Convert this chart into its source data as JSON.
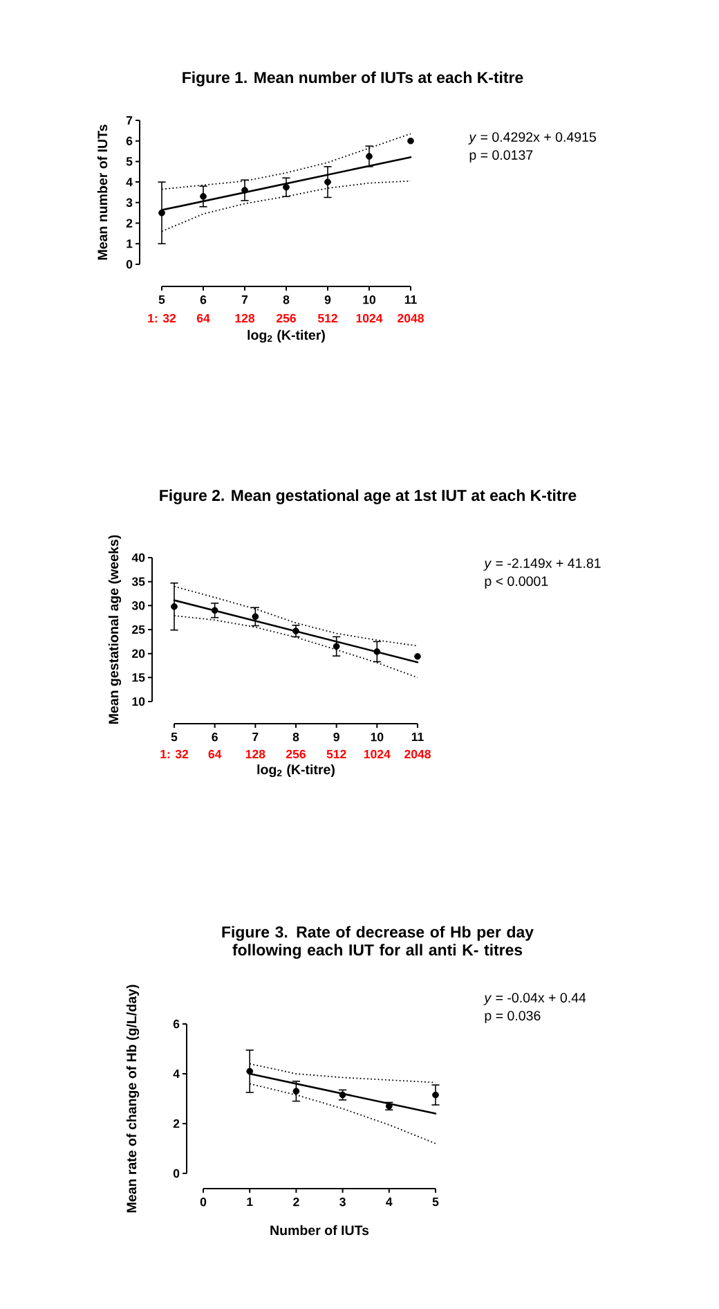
{
  "chart_data": [
    {
      "type": "scatter",
      "title": "Figure 1. Mean number of IUTs at each K-titre",
      "xlabel": "log$_{2}$ (K-titer)",
      "ylabel": "Mean number of IUTs",
      "xlim": [
        5,
        11
      ],
      "xticks": [
        5,
        6,
        7,
        8,
        9,
        10,
        11
      ],
      "x2lim": [
        32,
        2048
      ],
      "x2ticks": [
        {
          "value": 32,
          "label": "1: 32"
        },
        64,
        128,
        256,
        512,
        1024,
        2048
      ],
      "log": "x2",
      "ylim": [
        0,
        7
      ],
      "yticks": [
        0,
        1,
        2,
        3,
        4,
        5,
        6,
        7
      ],
      "annotations": [
        "*y* = 0.4292x + 0.4915",
        "p = 0.0137"
      ],
      "series": [
        {
          "color": "#000000",
          "marker": "circle",
          "x": [
            5,
            6,
            7,
            8,
            9,
            10,
            11
          ],
          "values": [
            2.5,
            3.3,
            3.6,
            3.75,
            4.0,
            5.25,
            6.0
          ],
          "errors": [
            1.5,
            0.5,
            0.5,
            0.45,
            0.75,
            0.5,
            null
          ]
        },
        {
          "type": "line",
          "color": "#000000",
          "marker": "none",
          "line_style": "solid",
          "x": [
            5,
            11
          ],
          "values": [
            2.64,
            5.21
          ]
        },
        {
          "type": "line",
          "color": "#000000",
          "marker": "none",
          "line_style": "dotted",
          "x": [
            5,
            6,
            7,
            8,
            9,
            10,
            11
          ],
          "values": [
            3.65,
            3.85,
            4.05,
            4.45,
            4.95,
            5.65,
            6.35
          ]
        },
        {
          "type": "line",
          "color": "#000000",
          "marker": "none",
          "line_style": "dotted",
          "x": [
            5,
            6,
            7,
            8,
            9,
            10,
            11
          ],
          "values": [
            1.6,
            2.45,
            2.95,
            3.3,
            3.7,
            3.95,
            4.05
          ]
        }
      ]
    },
    {
      "type": "scatter",
      "title": "Figure 2. Mean gestational age at 1st IUT at each K-titre",
      "xlabel": "log$_{2}$ (K-titre)",
      "ylabel": "Mean gestational age (weeks)",
      "xlim": [
        5,
        11
      ],
      "xticks": [
        5,
        6,
        7,
        8,
        9,
        10,
        11
      ],
      "x2lim": [
        32,
        2048
      ],
      "x2ticks": [
        {
          "value": 32,
          "label": "1: 32"
        },
        64,
        128,
        256,
        512,
        1024,
        2048
      ],
      "log": "x2",
      "ylim": [
        10,
        40
      ],
      "yticks": [
        10,
        15,
        20,
        25,
        30,
        35,
        40
      ],
      "annotations": [
        "*y* = -2.149x + 41.81",
        "p < 0.0001"
      ],
      "series": [
        {
          "color": "#000000",
          "marker": "circle",
          "x": [
            5,
            6,
            7,
            8,
            9,
            10,
            11
          ],
          "values": [
            29.8,
            29.0,
            27.7,
            24.7,
            21.5,
            20.4,
            19.4
          ],
          "errors": [
            4.9,
            1.5,
            1.9,
            1.2,
            2.0,
            2.1,
            null
          ]
        },
        {
          "type": "line",
          "color": "#000000",
          "marker": "none",
          "line_style": "solid",
          "x": [
            5,
            11
          ],
          "values": [
            31.1,
            18.2
          ]
        },
        {
          "type": "line",
          "color": "#000000",
          "marker": "none",
          "line_style": "dotted",
          "x": [
            5,
            6,
            7,
            8,
            9,
            10,
            11
          ],
          "values": [
            34.0,
            31.7,
            29.3,
            26.4,
            24.2,
            22.8,
            21.6
          ]
        },
        {
          "type": "line",
          "color": "#000000",
          "marker": "none",
          "line_style": "dotted",
          "x": [
            5,
            6,
            7,
            8,
            9,
            10,
            11
          ],
          "values": [
            27.9,
            27.0,
            25.5,
            23.4,
            20.8,
            18.1,
            15.0
          ]
        }
      ]
    },
    {
      "type": "scatter",
      "title": "Figure 3. Rate of decrease of Hb per day following each IUT for all anti K- titres",
      "xlabel": "Number of IUTs",
      "ylabel": "Mean rate of change of Hb (g/L/day)",
      "xlim": [
        0,
        5
      ],
      "xticks": [
        0,
        1,
        2,
        3,
        4,
        5
      ],
      "ylim": [
        0,
        6
      ],
      "yticks": [
        0,
        2,
        4,
        6
      ],
      "annotations": [
        "*y* = -0.04x + 0.44",
        "p = 0.036"
      ],
      "series": [
        {
          "color": "#000000",
          "marker": "circle",
          "x": [
            1,
            2,
            3,
            4,
            5
          ],
          "values": [
            4.1,
            3.3,
            3.15,
            2.7,
            3.15
          ],
          "errors": [
            0.85,
            0.4,
            0.2,
            0.15,
            0.4
          ]
        },
        {
          "type": "line",
          "color": "#000000",
          "marker": "none",
          "line_style": "solid",
          "x": [
            1,
            5
          ],
          "values": [
            4.0,
            2.4
          ]
        },
        {
          "type": "line",
          "color": "#000000",
          "marker": "none",
          "line_style": "dotted",
          "x": [
            1,
            2,
            3,
            4,
            5
          ],
          "values": [
            4.4,
            4.0,
            3.85,
            3.75,
            3.65
          ]
        },
        {
          "type": "line",
          "color": "#000000",
          "marker": "none",
          "line_style": "dotted",
          "x": [
            1,
            2,
            3,
            4,
            5
          ],
          "values": [
            3.6,
            3.15,
            2.6,
            1.95,
            1.2
          ]
        }
      ]
    }
  ]
}
